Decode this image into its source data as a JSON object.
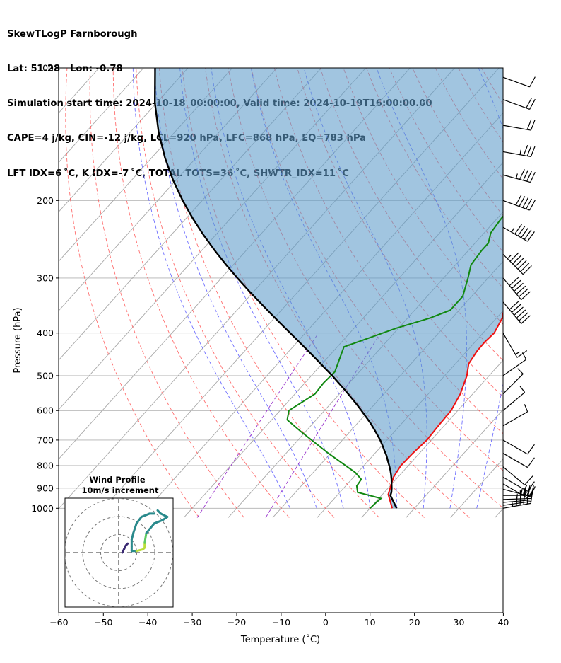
{
  "header": {
    "line1": "SkewTLogP Farnborough",
    "line2": "Lat: 51.28   Lon: -0.78",
    "line3": "Simulation start time: 2024-10-18_00:00:00, Valid time: 2024-10-19T16:00:00.00",
    "line4": "CAPE=4 j/kg, CIN=-12 j/kg, LCL=920 hPa, LFC=868 hPa, EQ=783 hPa",
    "line5": "LFT IDX=6 ˚C, K IDX=-7 ˚C, TOTAL TOTS=36 ˚C, SHWTR_IDX=11 ˚C"
  },
  "chart_data": {
    "type": "line",
    "subtype": "skew-T log-P diagram",
    "xlabel": "Temperature (˚C)",
    "ylabel": "Pressure (hPa)",
    "x_ticks": [
      -60,
      -50,
      -40,
      -30,
      -20,
      -10,
      0,
      10,
      20,
      30,
      40
    ],
    "y_ticks": [
      100,
      200,
      300,
      400,
      500,
      600,
      700,
      800,
      900,
      1000
    ],
    "xlim": [
      -60,
      40
    ],
    "ylim": [
      1050,
      100
    ],
    "y_scale": "log",
    "grid": true,
    "colors": {
      "temperature": "#ee1111",
      "dewpoint": "#118811",
      "parcel": "#000000",
      "cape_fill": "#5d9bc9",
      "dry_adiabats": "#ff5555",
      "moist_adiabats": "#5555ff",
      "mixing_ratio": "#9933cc",
      "isotherms": "#aaaaaa"
    },
    "series": [
      {
        "role": "temperature",
        "points": [
          [
            15.0,
            1000
          ],
          [
            11.3,
            930
          ],
          [
            9.0,
            850
          ],
          [
            8.3,
            800
          ],
          [
            8.5,
            750
          ],
          [
            9.0,
            700
          ],
          [
            8.7,
            650
          ],
          [
            8.5,
            600
          ],
          [
            7.2,
            550
          ],
          [
            5.0,
            500
          ],
          [
            3.0,
            470
          ],
          [
            2.3,
            440
          ],
          [
            2.2,
            420
          ],
          [
            2.5,
            400
          ],
          [
            1.3,
            370
          ],
          [
            -2.2,
            330
          ],
          [
            -6.5,
            290
          ],
          [
            -9.0,
            265
          ],
          [
            -11.0,
            250
          ],
          [
            -12.5,
            230
          ],
          [
            -13.0,
            210
          ],
          [
            -13.5,
            195
          ],
          [
            -14.0,
            180
          ],
          [
            -13.0,
            168
          ],
          [
            -10.5,
            152
          ],
          [
            -7.5,
            138
          ],
          [
            -6.0,
            128
          ],
          [
            -6.2,
            120
          ],
          [
            -5.3,
            113
          ],
          [
            -4.5,
            106
          ],
          [
            -4.0,
            100
          ]
        ]
      },
      {
        "role": "dewpoint",
        "points": [
          [
            10.0,
            1000
          ],
          [
            10.2,
            970
          ],
          [
            10.5,
            950
          ],
          [
            4.0,
            920
          ],
          [
            2.5,
            890
          ],
          [
            2.2,
            860
          ],
          [
            -0.5,
            830
          ],
          [
            -10.5,
            750
          ],
          [
            -21.0,
            670
          ],
          [
            -26.5,
            630
          ],
          [
            -28.0,
            600
          ],
          [
            -25.5,
            550
          ],
          [
            -25.8,
            520
          ],
          [
            -25.5,
            490
          ],
          [
            -28.5,
            430
          ],
          [
            -20.5,
            390
          ],
          [
            -15.0,
            370
          ],
          [
            -12.0,
            355
          ],
          [
            -12.0,
            330
          ],
          [
            -14.5,
            300
          ],
          [
            -16.5,
            280
          ],
          [
            -17.0,
            260
          ],
          [
            -17.0,
            250
          ],
          [
            -18.5,
            237
          ],
          [
            -19.0,
            222
          ],
          [
            -19.5,
            200
          ],
          [
            -20.0,
            188
          ],
          [
            -22.5,
            176
          ],
          [
            -24.0,
            166
          ],
          [
            -25.0,
            156
          ],
          [
            -24.0,
            145
          ],
          [
            -21.5,
            135
          ],
          [
            -19.0,
            122
          ],
          [
            -17.2,
            100
          ]
        ]
      },
      {
        "role": "parcel",
        "points": [
          [
            16.0,
            1000
          ],
          [
            12.0,
            935
          ],
          [
            11.6,
            920
          ],
          [
            10.8,
            900
          ],
          [
            9.9,
            880
          ],
          [
            9.0,
            860
          ],
          [
            8.0,
            840
          ],
          [
            6.9,
            820
          ],
          [
            5.7,
            800
          ],
          [
            4.4,
            780
          ],
          [
            3.1,
            760
          ],
          [
            1.6,
            740
          ],
          [
            0.1,
            720
          ],
          [
            -1.5,
            700
          ],
          [
            -3.3,
            680
          ],
          [
            -5.2,
            660
          ],
          [
            -7.2,
            640
          ],
          [
            -9.4,
            620
          ],
          [
            -11.7,
            600
          ],
          [
            -14.1,
            580
          ],
          [
            -16.7,
            560
          ],
          [
            -19.4,
            540
          ],
          [
            -22.3,
            520
          ],
          [
            -25.3,
            500
          ],
          [
            -28.6,
            480
          ],
          [
            -32.0,
            460
          ],
          [
            -35.6,
            440
          ],
          [
            -39.4,
            420
          ],
          [
            -43.4,
            400
          ],
          [
            -47.6,
            380
          ],
          [
            -52.0,
            360
          ],
          [
            -56.6,
            340
          ],
          [
            -61.4,
            320
          ],
          [
            -66.4,
            300
          ],
          [
            -71.6,
            280
          ],
          [
            -77.0,
            260
          ],
          [
            -82.6,
            240
          ],
          [
            -88.4,
            220
          ],
          [
            -94.4,
            200
          ],
          [
            -100.6,
            180
          ],
          [
            -107.0,
            160
          ],
          [
            -113.6,
            140
          ],
          [
            -120.4,
            120
          ],
          [
            -127.4,
            100
          ]
        ]
      }
    ],
    "wind_barbs": [
      {
        "p": 1000,
        "speed_kt": 55,
        "dir": 260
      },
      {
        "p": 985,
        "speed_kt": 50,
        "dir": 262
      },
      {
        "p": 970,
        "speed_kt": 45,
        "dir": 265
      },
      {
        "p": 955,
        "speed_kt": 40,
        "dir": 268
      },
      {
        "p": 935,
        "speed_kt": 35,
        "dir": 270
      },
      {
        "p": 905,
        "speed_kt": 25,
        "dir": 285
      },
      {
        "p": 880,
        "speed_kt": 15,
        "dir": 300
      },
      {
        "p": 850,
        "speed_kt": 15,
        "dir": 300
      },
      {
        "p": 805,
        "speed_kt": 10,
        "dir": 310
      },
      {
        "p": 750,
        "speed_kt": 10,
        "dir": 300
      },
      {
        "p": 700,
        "speed_kt": 10,
        "dir": 300
      },
      {
        "p": 650,
        "speed_kt": 10,
        "dir": 240
      },
      {
        "p": 600,
        "speed_kt": 10,
        "dir": 230
      },
      {
        "p": 550,
        "speed_kt": 10,
        "dir": 225
      },
      {
        "p": 500,
        "speed_kt": 10,
        "dir": 235
      },
      {
        "p": 400,
        "speed_kt": 15,
        "dir": 330
      },
      {
        "p": 340,
        "speed_kt": 60,
        "dir": 320
      },
      {
        "p": 300,
        "speed_kt": 60,
        "dir": 320
      },
      {
        "p": 265,
        "speed_kt": 65,
        "dir": 315
      },
      {
        "p": 230,
        "speed_kt": 55,
        "dir": 300
      },
      {
        "p": 200,
        "speed_kt": 50,
        "dir": 290
      },
      {
        "p": 175,
        "speed_kt": 45,
        "dir": 285
      },
      {
        "p": 155,
        "speed_kt": 35,
        "dir": 280
      },
      {
        "p": 135,
        "speed_kt": 20,
        "dir": 280
      },
      {
        "p": 118,
        "speed_kt": 20,
        "dir": 290
      },
      {
        "p": 105,
        "speed_kt": 10,
        "dir": 290
      }
    ],
    "inset": {
      "title_line1": "Wind Profile",
      "title_line2": "10m/s increment",
      "rings": [
        10,
        20,
        30
      ],
      "hodograph": [
        [
          22,
          -24
        ],
        [
          19,
          -24
        ],
        [
          14,
          -22
        ],
        [
          11,
          -18
        ],
        [
          9,
          -12
        ],
        [
          8,
          -8
        ],
        [
          8,
          -4
        ],
        [
          8,
          -1
        ],
        [
          11,
          -1
        ],
        [
          15,
          -2
        ],
        [
          16,
          -3
        ],
        [
          16,
          -6
        ],
        [
          17,
          -12
        ],
        [
          22,
          -18
        ],
        [
          27,
          -20
        ],
        [
          30,
          -22
        ],
        [
          26,
          -24
        ],
        [
          24,
          -26
        ]
      ],
      "hodograph_extra": [
        [
          3,
          5
        ],
        [
          4,
          8
        ]
      ],
      "hodograph_low": [
        [
          2,
          0
        ],
        [
          3,
          2
        ],
        [
          4,
          4
        ],
        [
          5,
          5
        ]
      ]
    }
  }
}
